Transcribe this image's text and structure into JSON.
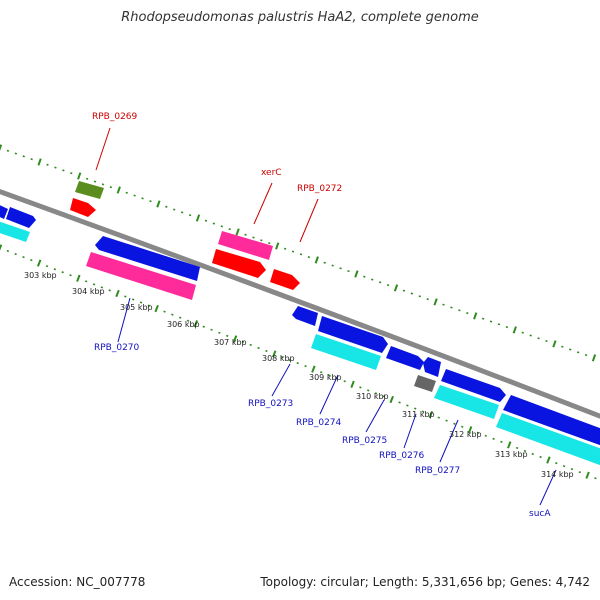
{
  "title": "Rhodopseudomonas palustris HaA2, complete genome",
  "footer": {
    "accession": "Accession: NC_007778",
    "summary": "Topology: circular; Length: 5,331,656 bp; Genes: 4,742"
  },
  "colors": {
    "backbone": "#888888",
    "ticks": "#2e8b1e",
    "forward_cds": "#0a14e0",
    "reverse_cds": "#18e6e6",
    "rna": "#ff0000",
    "pink": "#ff2b9a",
    "olive": "#5a8c1e",
    "grey_feature": "#666666",
    "label_red": "#cc0000",
    "label_blue": "#1010c0"
  },
  "scale_labels": [
    "303 kbp",
    "304 kbp",
    "305 kbp",
    "306 kbp",
    "307 kbp",
    "308 kbp",
    "309 kbp",
    "310 kbp",
    "311 kbp",
    "312 kbp",
    "313 kbp",
    "314 kbp"
  ],
  "gene_labels": [
    {
      "text": "RPB_0269",
      "color": "red"
    },
    {
      "text": "xerC",
      "color": "red"
    },
    {
      "text": "RPB_0272",
      "color": "red"
    },
    {
      "text": "RPB_0270",
      "color": "blue"
    },
    {
      "text": "RPB_0273",
      "color": "blue"
    },
    {
      "text": "RPB_0274",
      "color": "blue"
    },
    {
      "text": "RPB_0275",
      "color": "blue"
    },
    {
      "text": "RPB_0276",
      "color": "blue"
    },
    {
      "text": "RPB_0277",
      "color": "blue"
    },
    {
      "text": "sucA",
      "color": "blue"
    }
  ]
}
